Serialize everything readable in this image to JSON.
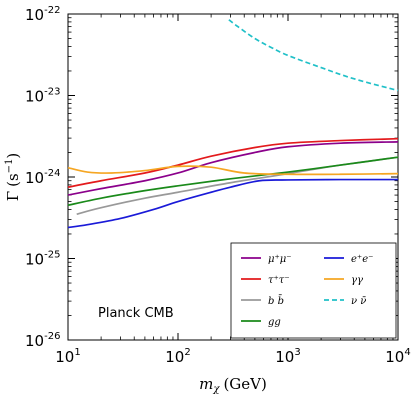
{
  "chart_data": {
    "type": "line",
    "xscale": "log",
    "yscale": "log",
    "xlim": [
      10,
      10000
    ],
    "ylim": [
      1e-26,
      1e-22
    ],
    "xlabel_sym": "m",
    "xlabel_sub": "χ",
    "xlabel_unit": "(GeV)",
    "ylabel_sym": "Γ",
    "ylabel_unit_open": "(s",
    "ylabel_unit_exp": "−1",
    "ylabel_unit_close": ")",
    "x_ticks": [
      {
        "value": 10,
        "base": "10",
        "exp": "1"
      },
      {
        "value": 100,
        "base": "10",
        "exp": "2"
      },
      {
        "value": 1000,
        "base": "10",
        "exp": "3"
      },
      {
        "value": 10000,
        "base": "10",
        "exp": "4"
      }
    ],
    "y_ticks": [
      {
        "value": 1e-26,
        "base": "10",
        "exp": "-26"
      },
      {
        "value": 1e-25,
        "base": "10",
        "exp": "-25"
      },
      {
        "value": 1e-24,
        "base": "10",
        "exp": "-24"
      },
      {
        "value": 1e-23,
        "base": "10",
        "exp": "-23"
      },
      {
        "value": 1e-22,
        "base": "10",
        "exp": "-22"
      }
    ],
    "annotation": "Planck CMB",
    "legend_position": "lower-right",
    "grid": false,
    "series": [
      {
        "name": "μ⁺μ⁻",
        "color": "#8b008b",
        "dash": false,
        "x": [
          10,
          20,
          50,
          100,
          200,
          500,
          1000,
          3000,
          10000
        ],
        "y": [
          6e-25,
          7.2e-25,
          9e-25,
          1.12e-24,
          1.5e-24,
          2e-24,
          2.35e-24,
          2.6e-24,
          2.7e-24
        ]
      },
      {
        "name": "τ⁺τ⁻",
        "color": "#e31a1c",
        "dash": false,
        "x": [
          10,
          20,
          50,
          100,
          200,
          500,
          1000,
          3000,
          10000
        ],
        "y": [
          7.5e-25,
          9e-25,
          1.12e-24,
          1.4e-24,
          1.8e-24,
          2.3e-24,
          2.6e-24,
          2.8e-24,
          2.95e-24
        ]
      },
      {
        "name": "b b̄",
        "color": "#999999",
        "dash": false,
        "x": [
          12,
          20,
          50,
          100,
          300,
          1000,
          3000,
          10000
        ],
        "y": [
          3.5e-25,
          4.2e-25,
          5.5e-25,
          6.5e-25,
          8.5e-25,
          1.1e-24,
          1.4e-24,
          1.75e-24
        ]
      },
      {
        "name": "gg",
        "color": "#1a8a1a",
        "dash": false,
        "x": [
          10,
          20,
          50,
          100,
          300,
          1000,
          3000,
          10000
        ],
        "y": [
          4.5e-25,
          5.5e-25,
          6.8e-25,
          7.8e-25,
          9.5e-25,
          1.15e-24,
          1.4e-24,
          1.75e-24
        ]
      },
      {
        "name": "e⁺e⁻",
        "color": "#1a1ad8",
        "dash": false,
        "x": [
          10,
          15,
          30,
          60,
          100,
          200,
          300,
          550,
          1000,
          3000,
          10000
        ],
        "y": [
          2.4e-25,
          2.6e-25,
          3.1e-25,
          4e-25,
          5e-25,
          6.5e-25,
          7.5e-25,
          9e-25,
          9.2e-25,
          9.3e-25,
          9.3e-25
        ]
      },
      {
        "name": "γγ",
        "color": "#f5a623",
        "dash": false,
        "x": [
          10,
          15,
          25,
          50,
          100,
          200,
          400,
          1000,
          3000,
          10000
        ],
        "y": [
          1.3e-24,
          1.15e-24,
          1.12e-24,
          1.2e-24,
          1.35e-24,
          1.32e-24,
          1.12e-24,
          1.08e-24,
          1.08e-24,
          1.1e-24
        ]
      },
      {
        "name": "ν ν̄",
        "color": "#20c0c8",
        "dash": true,
        "x": [
          290,
          350,
          500,
          700,
          1000,
          2000,
          4000,
          10000
        ],
        "y": [
          8.5e-23,
          7e-23,
          5e-23,
          3.9e-23,
          3.1e-23,
          2.2e-23,
          1.6e-23,
          1.15e-23
        ]
      }
    ]
  }
}
